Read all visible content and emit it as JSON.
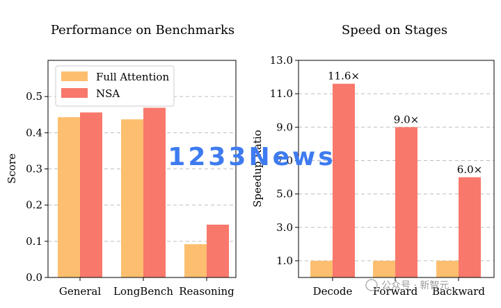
{
  "chart_data": [
    {
      "type": "bar",
      "title": "Performance on Benchmarks",
      "xlabel": "",
      "ylabel": "Score",
      "ylim": [
        0,
        0.6
      ],
      "yticks": [
        "0.0",
        "0.1",
        "0.2",
        "0.3",
        "0.4",
        "0.5"
      ],
      "categories": [
        "General",
        "LongBench",
        "Reasoning"
      ],
      "series": [
        {
          "name": "Full Attention",
          "values": [
            0.443,
            0.437,
            0.092
          ],
          "color": "#fdbf6f"
        },
        {
          "name": "NSA",
          "values": [
            0.456,
            0.469,
            0.146
          ],
          "color": "#f8786b"
        }
      ],
      "legend": "top-left",
      "grid": "horizontal dashed"
    },
    {
      "type": "bar",
      "title": "Speed on Stages",
      "xlabel": "",
      "ylabel": "Speedup Ratio",
      "ylim": [
        0,
        13.0
      ],
      "yticks": [
        "1.0",
        "3.0",
        "5.0",
        "7.0",
        "9.0",
        "11.0",
        "13.0"
      ],
      "categories": [
        "Decode",
        "Forward",
        "Backward"
      ],
      "series": [
        {
          "name": "Full Attention",
          "values": [
            1.0,
            1.0,
            1.0
          ],
          "color": "#fdbf6f"
        },
        {
          "name": "NSA",
          "values": [
            11.6,
            9.0,
            6.0
          ],
          "color": "#f8786b",
          "data_labels": [
            "11.6×",
            "9.0×",
            "6.0×"
          ]
        }
      ],
      "grid": "horizontal dashed"
    }
  ],
  "watermark": {
    "text": "1233News"
  },
  "logo": {
    "text": "公众号 · 新智元"
  }
}
